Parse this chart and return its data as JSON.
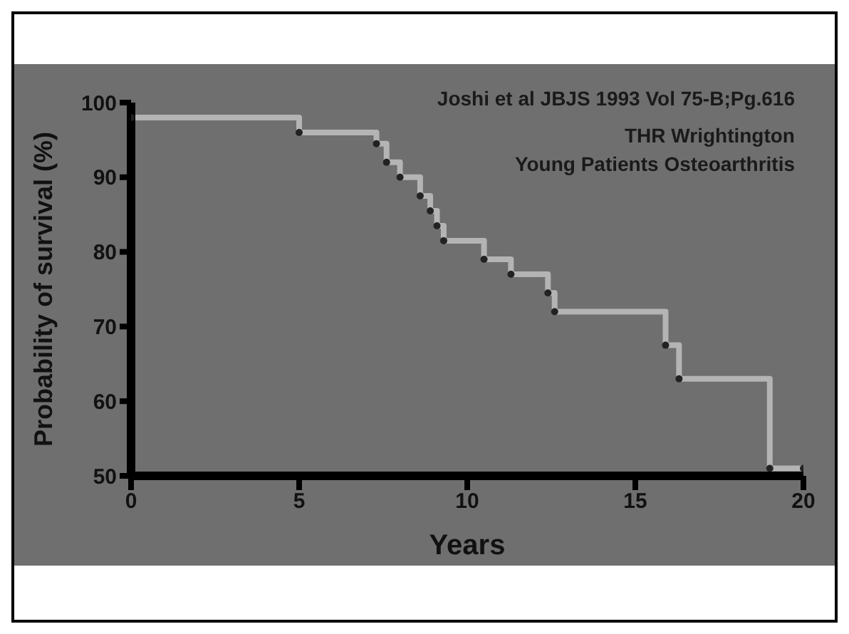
{
  "chart_data": {
    "type": "step",
    "xlabel": "Years",
    "ylabel": "Probability of survival (%)",
    "annotations": [
      "Joshi et al JBJS 1993 Vol 75-B;Pg.616",
      "THR Wrightington",
      "Young Patients Osteoarthritis"
    ],
    "x": [
      0,
      5.0,
      7.3,
      7.6,
      8.0,
      8.6,
      8.9,
      9.1,
      9.3,
      10.5,
      11.3,
      12.4,
      12.6,
      15.9,
      16.3,
      19.0,
      20
    ],
    "series": [
      {
        "color": "#b4b4b4",
        "values": [
          98,
          96,
          94.5,
          92,
          90,
          87.5,
          85.5,
          83.5,
          81.5,
          79,
          77,
          74.5,
          72,
          67.5,
          63,
          51,
          51
        ]
      }
    ],
    "xlim": [
      0,
      20
    ],
    "xticks": [
      0,
      5,
      10,
      15,
      20
    ],
    "ylim": [
      50,
      100
    ],
    "yticks": [
      50,
      60,
      70,
      80,
      90,
      100
    ],
    "grid": false,
    "legend": false,
    "marker": "circle",
    "line_style": "solid"
  }
}
